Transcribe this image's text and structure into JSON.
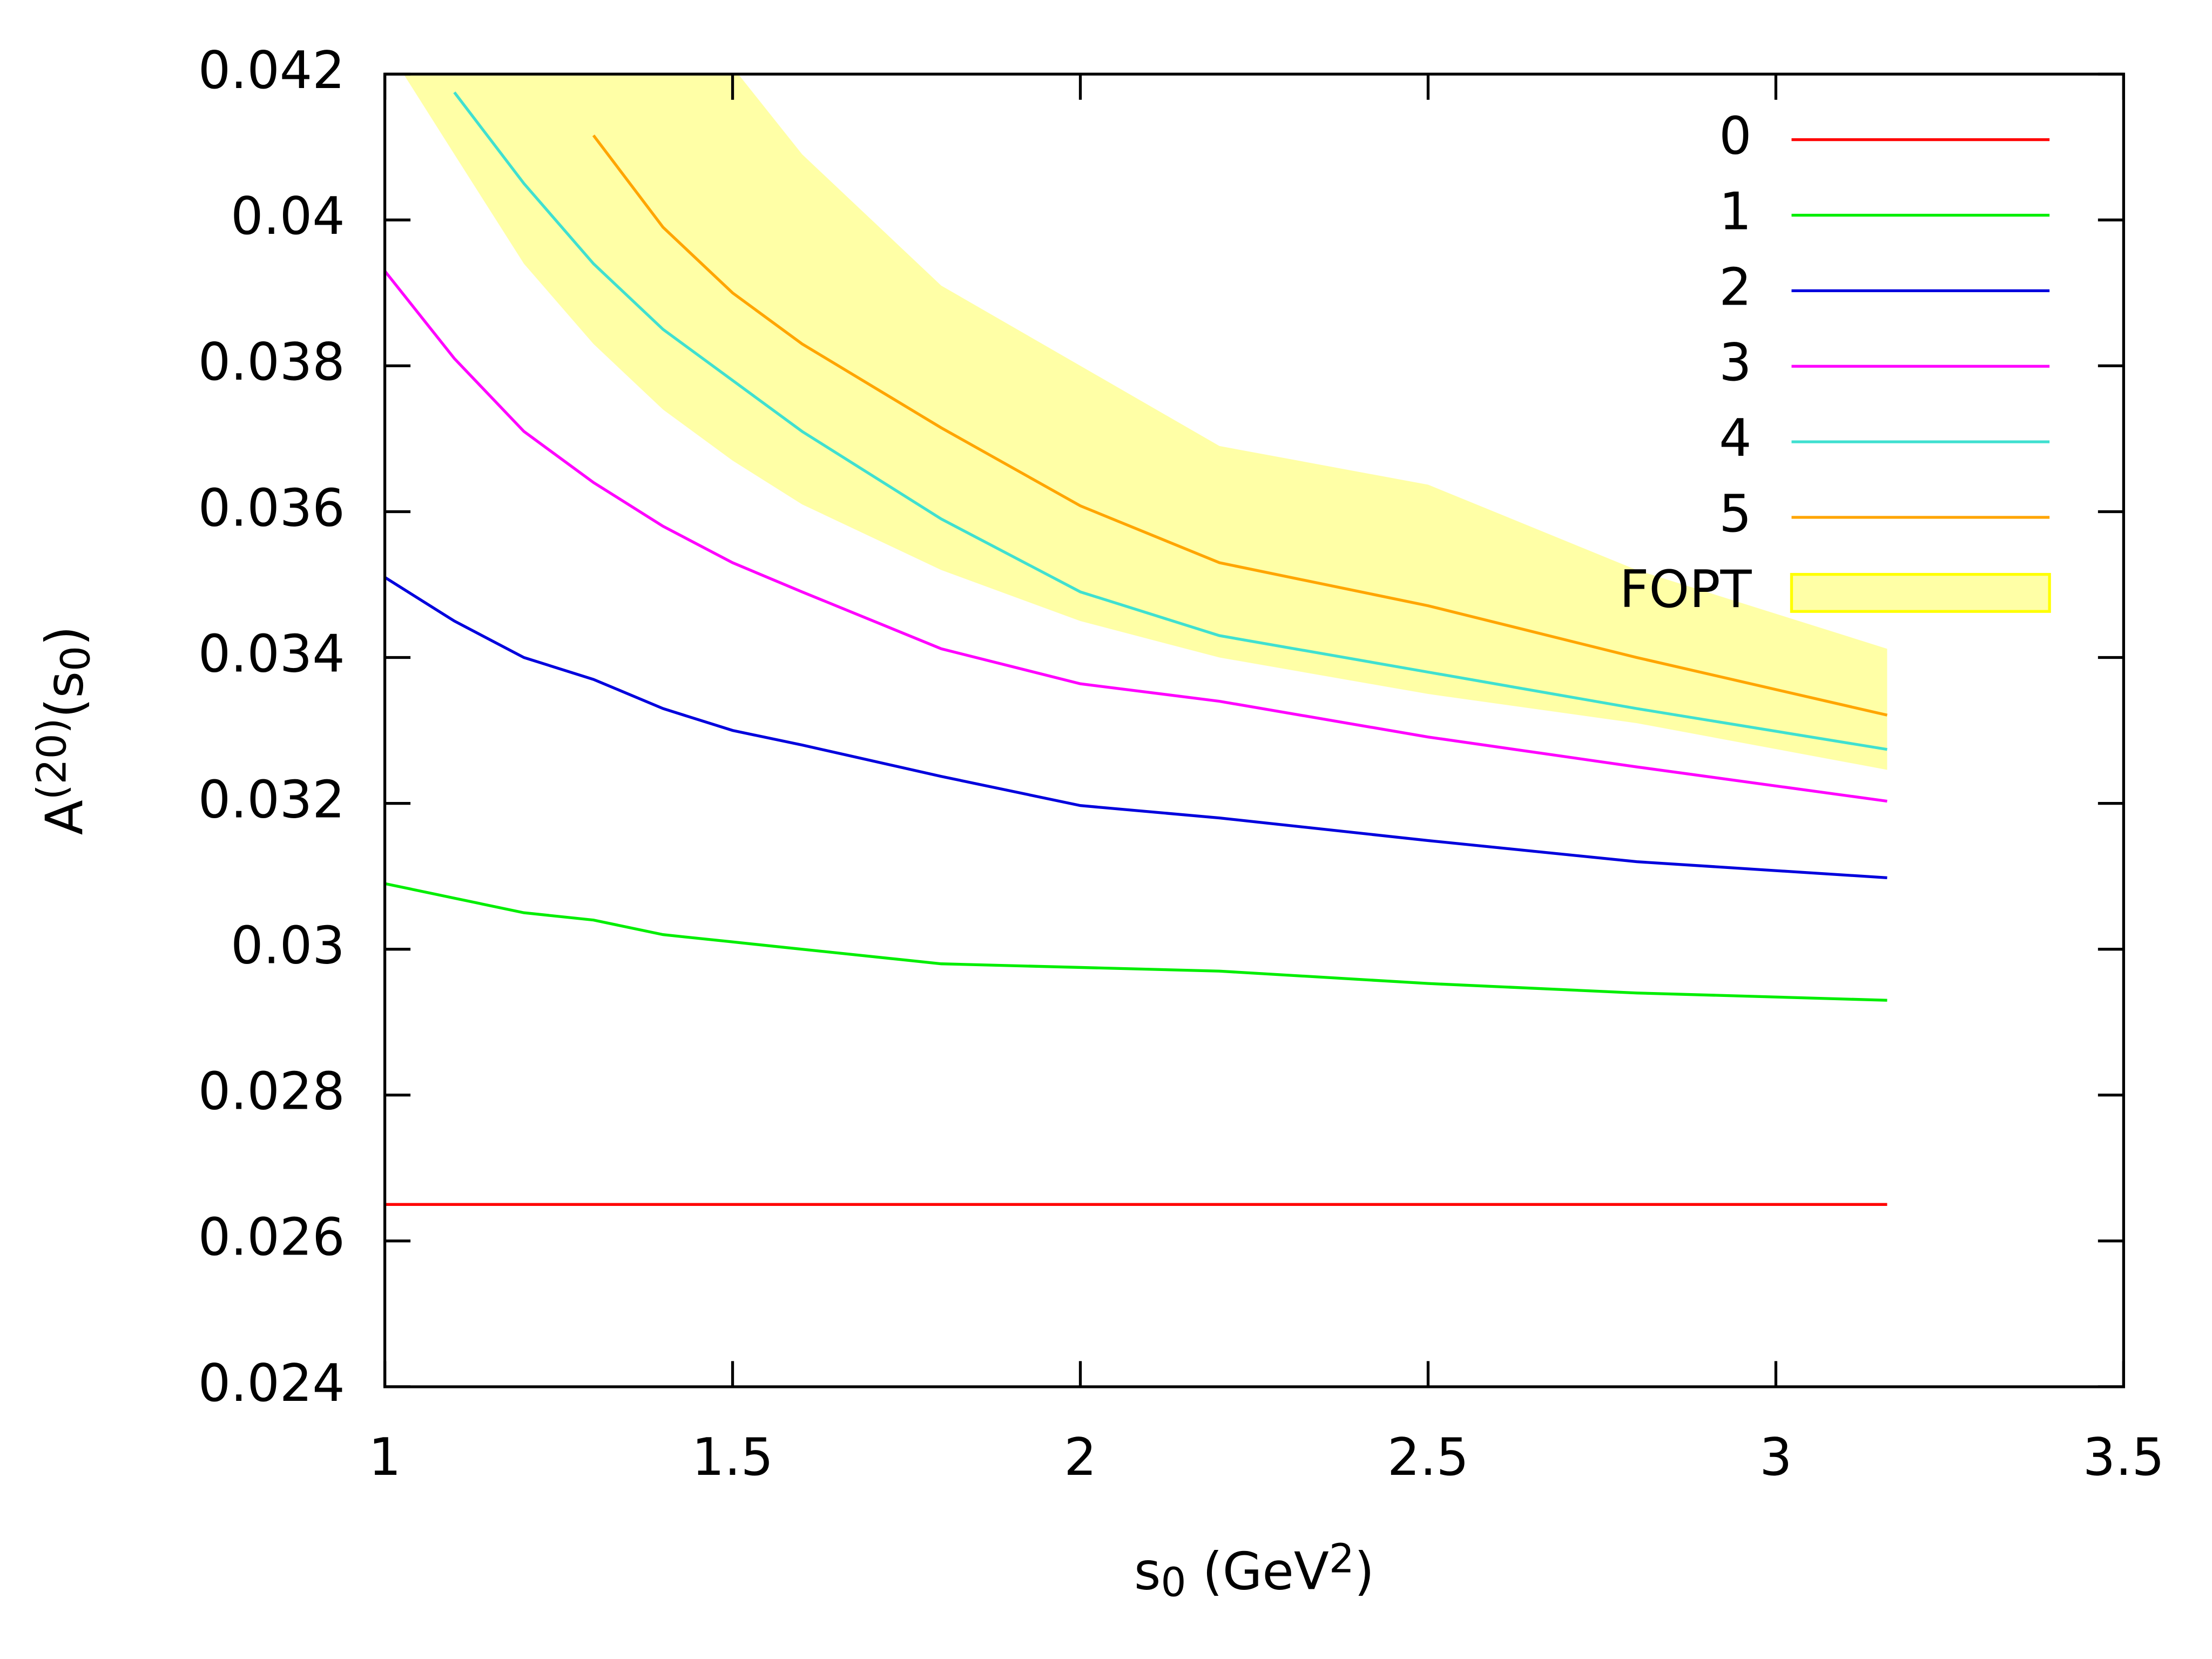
{
  "chart_data": {
    "type": "line",
    "xlabel": [
      {
        "text": "s"
      },
      {
        "text": "0",
        "sub": true
      },
      {
        "text": " (GeV"
      },
      {
        "text": "2",
        "sup": true
      },
      {
        "text": ")"
      }
    ],
    "ylabel": [
      {
        "text": "A"
      },
      {
        "text": "(20)",
        "sup": true
      },
      {
        "text": "(s"
      },
      {
        "text": "0",
        "sub": true
      },
      {
        "text": ")"
      }
    ],
    "x": [
      1,
      1.1,
      1.2,
      1.3,
      1.4,
      1.5,
      1.6,
      1.8,
      2.0,
      2.2,
      2.5,
      2.8,
      3.16
    ],
    "series": [
      {
        "name": "0",
        "color": "#ff0000",
        "values": [
          0.0265,
          0.0265,
          0.0265,
          0.0265,
          0.0265,
          0.0265,
          0.0265,
          0.0265,
          0.0265,
          0.0265,
          0.0265,
          0.0265,
          0.0265
        ]
      },
      {
        "name": "1",
        "color": "#00ee00",
        "values": [
          0.0309,
          0.0307,
          0.0305,
          0.0304,
          0.0302,
          0.0301,
          0.03,
          0.0298,
          0.02975,
          0.0297,
          0.02953,
          0.0294,
          0.0293
        ]
      },
      {
        "name": "2",
        "color": "#0000dd",
        "values": [
          0.0351,
          0.0345,
          0.034,
          0.0337,
          0.0333,
          0.033,
          0.0328,
          0.03237,
          0.03197,
          0.0318,
          0.03149,
          0.0312,
          0.03098
        ]
      },
      {
        "name": "3",
        "color": "#ff00ff",
        "values": [
          0.0393,
          0.0381,
          0.0371,
          0.0364,
          0.0358,
          0.0353,
          0.0349,
          0.03412,
          0.03364,
          0.0334,
          0.03291,
          0.0325,
          0.03203
        ]
      },
      {
        "name": "4",
        "color": "#40e0d0",
        "values": [
          null,
          0.04175,
          0.0405,
          0.0394,
          0.0385,
          0.0378,
          0.0371,
          0.0359,
          0.0349,
          0.0343,
          0.0338,
          0.0333,
          0.03274
        ]
      },
      {
        "name": "5",
        "color": "#ffa500",
        "values": [
          null,
          null,
          null,
          0.04116,
          0.0399,
          0.039,
          0.0383,
          0.03715,
          0.03608,
          0.0353,
          0.03471,
          0.034,
          0.03321
        ]
      }
    ],
    "band": {
      "name": "FOPT",
      "color": "#ffff00",
      "lower": [
        null,
        0.0409,
        0.0394,
        0.0383,
        0.0374,
        0.0367,
        0.0361,
        0.0352,
        0.0345,
        0.034,
        0.0335,
        0.0331,
        0.03246
      ],
      "upper": [
        null,
        null,
        null,
        null,
        null,
        null,
        0.0409,
        0.0391,
        0.038,
        0.0369,
        0.03637,
        0.0352,
        0.03412
      ]
    },
    "xlim": [
      1,
      3.5
    ],
    "xticks": [
      1,
      1.5,
      2,
      2.5,
      3,
      3.5
    ],
    "ylim": [
      0.024,
      0.042
    ],
    "yticks": [
      0.024,
      0.026,
      0.028,
      0.03,
      0.032,
      0.034,
      0.036,
      0.038,
      0.04,
      0.042
    ],
    "legend": "upper right",
    "grid": false
  }
}
